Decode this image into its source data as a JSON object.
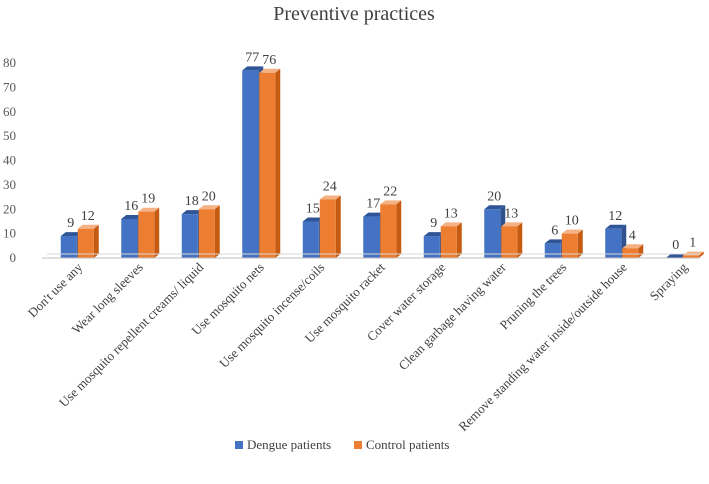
{
  "chart_data": {
    "type": "bar",
    "title": "Preventive practices",
    "xlabel": "",
    "ylabel": "",
    "ylim": [
      0,
      80
    ],
    "yticks": [
      0,
      10,
      20,
      30,
      40,
      50,
      60,
      70,
      80
    ],
    "categories": [
      "Don't use any",
      "Wear long sleeves",
      "Use mosquito repellent creams/ liquid",
      "Use mosquito nets",
      "Use mosquito incense/coils",
      "Use mosquito racket",
      "Cover water storage",
      "Clean garbage having water",
      "Pruning the trees",
      "Remove standing water inside/outside house",
      "Spraying"
    ],
    "series": [
      {
        "name": "Dengue patients",
        "values": [
          9,
          16,
          18,
          77,
          15,
          17,
          9,
          20,
          6,
          12,
          0
        ],
        "color": "#4472C4",
        "top": "#2F5597",
        "side": "#2F528F"
      },
      {
        "name": "Control patients",
        "values": [
          12,
          19,
          20,
          76,
          24,
          22,
          13,
          13,
          10,
          4,
          1
        ],
        "color": "#ED7D31",
        "top": "#F4B183",
        "side": "#C55A11"
      }
    ],
    "legend": {
      "position": "bottom-left"
    },
    "grid": false
  }
}
